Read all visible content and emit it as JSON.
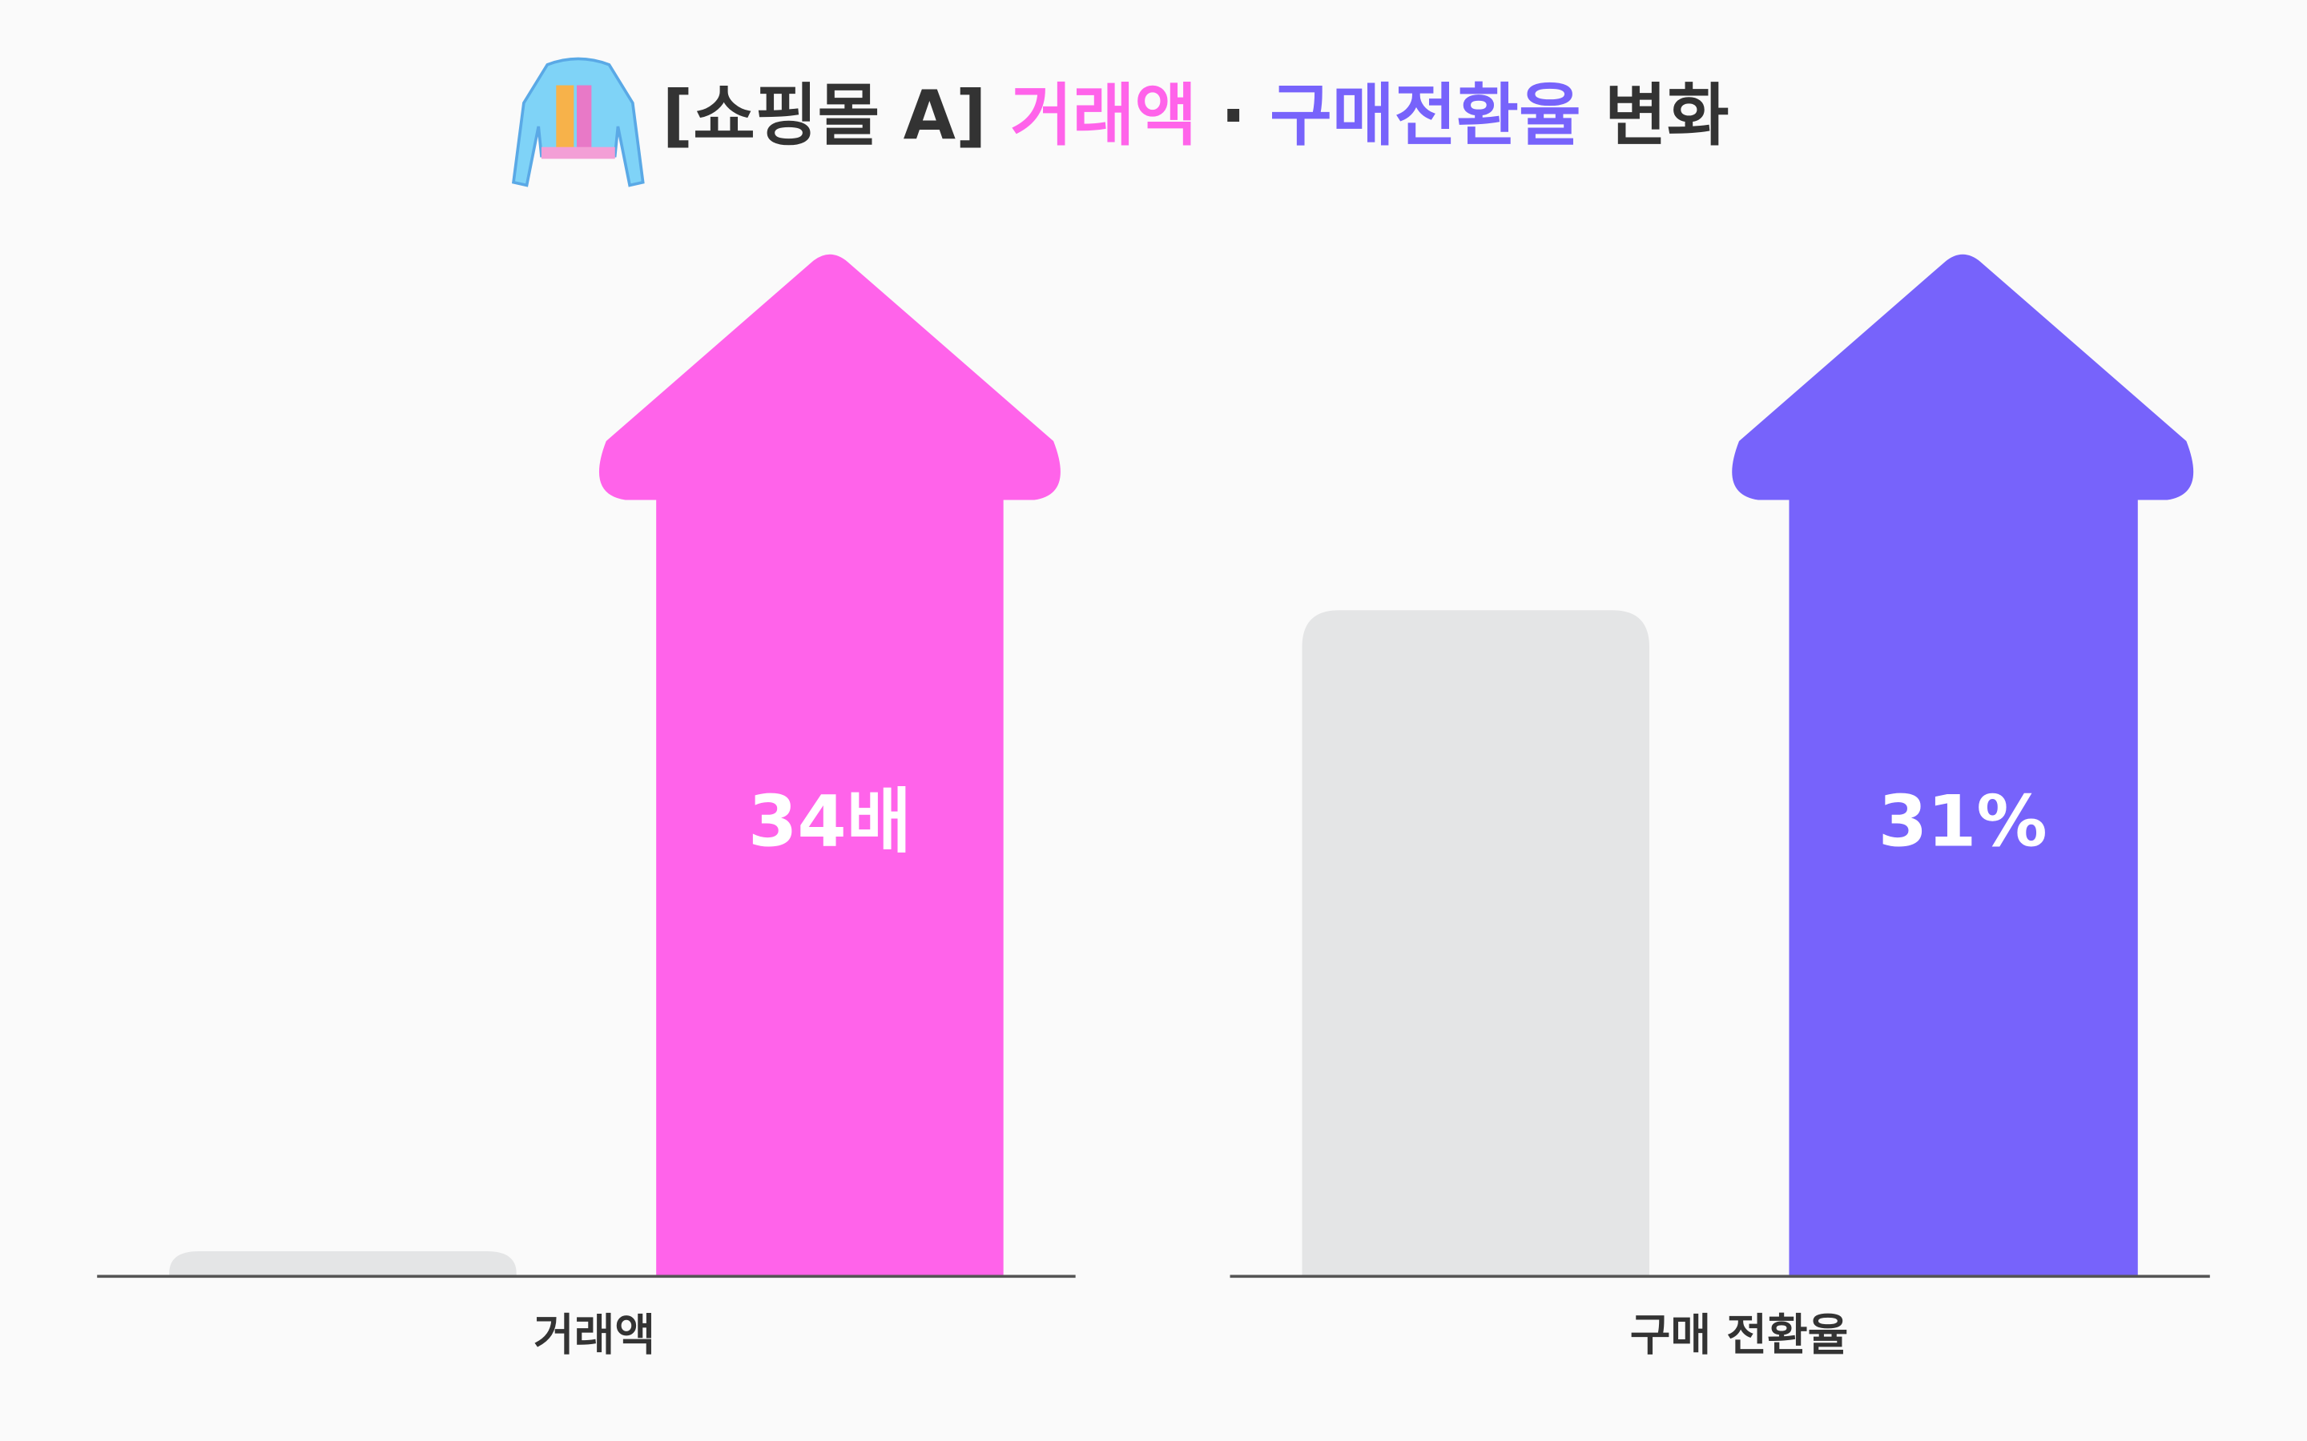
{
  "title": {
    "prefix": "[쇼핑몰 A]",
    "highlight1": "거래액",
    "separator": "·",
    "highlight2": "구매전환율",
    "suffix": "변화"
  },
  "panels": [
    {
      "label": "거래액",
      "change_label": "34배"
    },
    {
      "label": "구매 전환율",
      "change_label": "31%"
    }
  ]
}
